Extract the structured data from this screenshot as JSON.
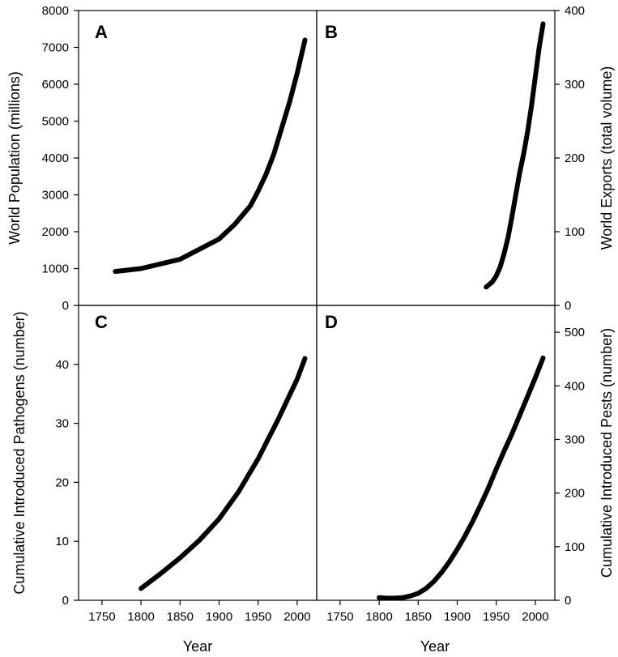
{
  "chart_data": [
    {
      "panel": "A",
      "type": "line",
      "ylabel": "World Population (millions)",
      "xlim": [
        1720,
        2025
      ],
      "ylim": [
        0,
        8000
      ],
      "yticks": [
        0,
        1000,
        2000,
        3000,
        4000,
        5000,
        6000,
        7000,
        8000
      ],
      "y_axis_side": "left",
      "x": [
        1767,
        1800,
        1850,
        1900,
        1920,
        1940,
        1950,
        1960,
        1970,
        1980,
        1990,
        2000,
        2010
      ],
      "y": [
        920,
        1000,
        1250,
        1800,
        2200,
        2700,
        3100,
        3550,
        4100,
        4800,
        5500,
        6300,
        7200
      ]
    },
    {
      "panel": "B",
      "type": "line",
      "ylabel": "World Exports (total volume)",
      "xlim": [
        1720,
        2025
      ],
      "ylim": [
        0,
        400
      ],
      "yticks": [
        0,
        100,
        200,
        300,
        400
      ],
      "y_axis_side": "right",
      "x": [
        1937,
        1945,
        1950,
        1955,
        1960,
        1965,
        1970,
        1975,
        1980,
        1985,
        1990,
        1995,
        2000,
        2005,
        2010
      ],
      "y": [
        25,
        32,
        40,
        52,
        70,
        92,
        120,
        150,
        180,
        205,
        235,
        270,
        310,
        350,
        382
      ]
    },
    {
      "panel": "C",
      "type": "line",
      "ylabel": "Cumulative Introduced Pathogens (number)",
      "xlabel": "Year",
      "xlim": [
        1720,
        2025
      ],
      "ylim": [
        0,
        50
      ],
      "yticks": [
        0,
        10,
        20,
        30,
        40
      ],
      "xticks": [
        1750,
        1800,
        1850,
        1900,
        1950,
        2000
      ],
      "y_axis_side": "left",
      "x": [
        1800,
        1825,
        1850,
        1875,
        1900,
        1925,
        1950,
        1975,
        2000,
        2010
      ],
      "y": [
        2,
        4.5,
        7.2,
        10.2,
        13.8,
        18.4,
        24,
        30.5,
        37.5,
        41
      ]
    },
    {
      "panel": "D",
      "type": "line",
      "ylabel": "Cumulative Introduced Pests (number)",
      "xlabel": "Year",
      "xlim": [
        1720,
        2025
      ],
      "ylim": [
        0,
        550
      ],
      "yticks": [
        0,
        100,
        200,
        300,
        400,
        500
      ],
      "xticks": [
        1750,
        1800,
        1850,
        1900,
        1950,
        2000
      ],
      "y_axis_side": "right",
      "x": [
        1800,
        1810,
        1820,
        1830,
        1840,
        1850,
        1860,
        1870,
        1880,
        1890,
        1900,
        1910,
        1920,
        1930,
        1940,
        1950,
        1960,
        1970,
        1980,
        1990,
        2000,
        2010
      ],
      "y": [
        5,
        4,
        4,
        5,
        8,
        13,
        22,
        35,
        52,
        72,
        95,
        120,
        148,
        178,
        210,
        245,
        278,
        310,
        345,
        380,
        415,
        452
      ]
    }
  ]
}
